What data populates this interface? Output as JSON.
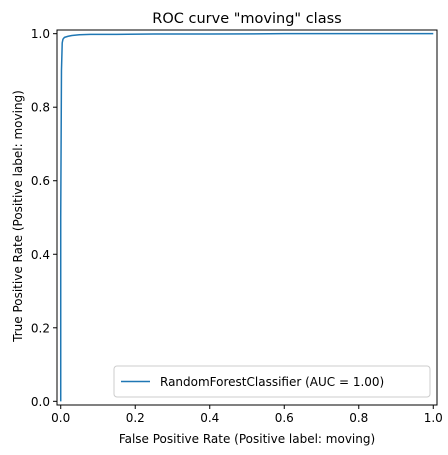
{
  "chart_data": {
    "type": "line",
    "title": "ROC curve \"moving\" class",
    "xlabel": "False Positive Rate (Positive label: moving)",
    "ylabel": "True Positive Rate (Positive label: moving)",
    "xlim": [
      -0.01,
      1.01
    ],
    "ylim": [
      -0.01,
      1.01
    ],
    "xticks": [
      0.0,
      0.2,
      0.4,
      0.6,
      0.8,
      1.0
    ],
    "xtick_labels": [
      "0.0",
      "0.2",
      "0.4",
      "0.6",
      "0.8",
      "1.0"
    ],
    "yticks": [
      0.0,
      0.2,
      0.4,
      0.6,
      0.8,
      1.0
    ],
    "ytick_labels": [
      "0.0",
      "0.2",
      "0.4",
      "0.6",
      "0.8",
      "1.0"
    ],
    "grid": false,
    "legend_position": "lower-right",
    "series": [
      {
        "name": "RandomForestClassifier (AUC = 1.00)",
        "color": "#1f77b4",
        "x": [
          0.0,
          0.0,
          0.002,
          0.004,
          0.006,
          0.01,
          0.02,
          0.03,
          0.05,
          0.08,
          0.15,
          0.25,
          0.4,
          0.6,
          0.8,
          1.0
        ],
        "y": [
          0.0,
          0.5,
          0.9,
          0.975,
          0.985,
          0.99,
          0.993,
          0.995,
          0.997,
          0.998,
          0.998,
          0.999,
          0.999,
          1.0,
          1.0,
          1.0
        ]
      }
    ]
  }
}
